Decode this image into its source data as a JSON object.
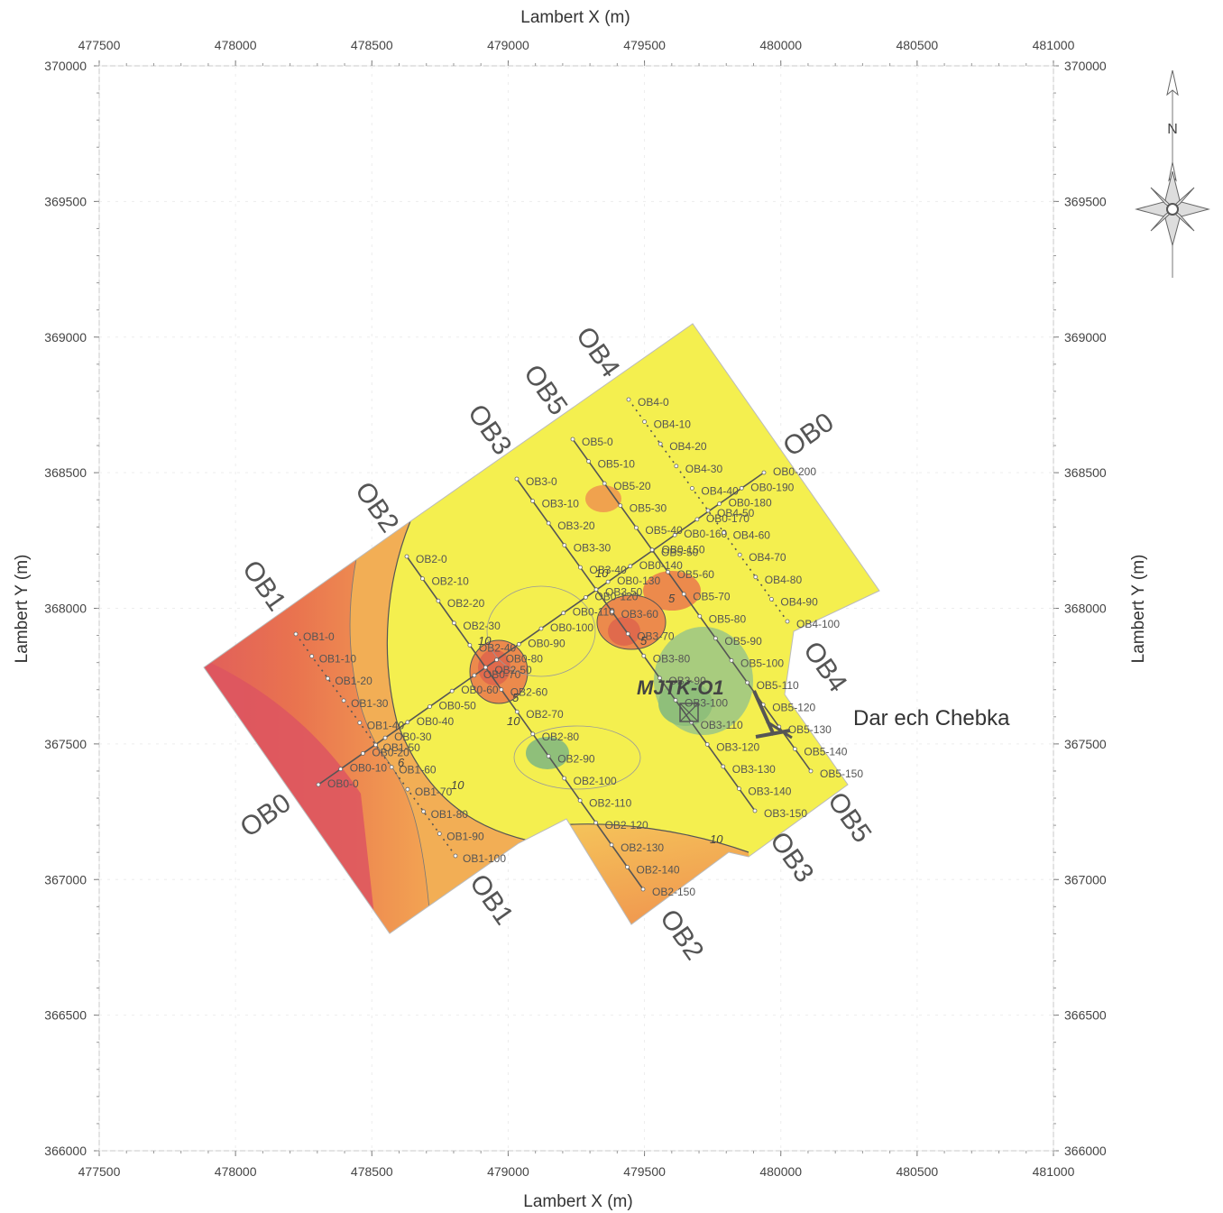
{
  "axes": {
    "x_title": "Lambert X (m)",
    "y_title": "Lambert Y (m)",
    "x_ticks": [
      "477500",
      "478000",
      "478500",
      "479000",
      "479500",
      "480000",
      "480500",
      "481000"
    ],
    "y_ticks": [
      "370000",
      "369500",
      "369000",
      "368500",
      "368000",
      "367500",
      "367000",
      "366500",
      "366000"
    ],
    "x_range": [
      477500,
      481000
    ],
    "y_range": [
      366000,
      370000
    ]
  },
  "north_arrow": {
    "label": "N",
    "icon": "compass-rose-icon"
  },
  "place_label": "Dar ech Chebka",
  "well": {
    "label": "MJTK-O1"
  },
  "colors": {
    "low": "#e05a5a",
    "mid": "#f0a24e",
    "high": "#f5f04a",
    "green": "#8fbf7a",
    "background": "#ffffff"
  },
  "contour_labels": [
    "10",
    "5",
    "10",
    "10",
    "5",
    "6",
    "5",
    "10",
    "10"
  ],
  "profiles": [
    {
      "name": "OB0",
      "stations": [
        "OB0-0",
        "OB0-10",
        "OB0-20",
        "OB0-30",
        "OB0-40",
        "OB0-50",
        "OB0-60",
        "OB0-70",
        "OB0-80",
        "OB0-90",
        "OB0-100",
        "OB0-110",
        "OB0-120",
        "OB0-130",
        "OB0-140",
        "OB0-150",
        "OB0-160",
        "OB0-170",
        "OB0-180",
        "OB0-190",
        "OB0-200"
      ]
    },
    {
      "name": "OB1",
      "stations": [
        "OB1-0",
        "OB1-10",
        "OB1-20",
        "OB1-30",
        "OB1-40",
        "OB1-50",
        "OB1-60",
        "OB1-70",
        "OB1-80",
        "OB1-90",
        "OB1-100"
      ]
    },
    {
      "name": "OB2",
      "stations": [
        "OB2-0",
        "OB2-10",
        "OB2-20",
        "OB2-30",
        "OB2-40",
        "OB2-50",
        "OB2-60",
        "OB2-70",
        "OB2-80",
        "OB2-90",
        "OB2-100",
        "OB2-110",
        "OB2-120",
        "OB2-130",
        "OB2-140",
        "OB2-150"
      ]
    },
    {
      "name": "OB3",
      "stations": [
        "OB3-0",
        "OB3-10",
        "OB3-20",
        "OB3-30",
        "OB3-40",
        "OB3-50",
        "OB3-60",
        "OB3-70",
        "OB3-80",
        "OB3-90",
        "OB3-100",
        "OB3-110",
        "OB3-120",
        "OB3-130",
        "OB3-140",
        "OB3-150"
      ]
    },
    {
      "name": "OB4",
      "stations": [
        "OB4-0",
        "OB4-10",
        "OB4-20",
        "OB4-30",
        "OB4-40",
        "OB4-50",
        "OB4-60",
        "OB4-70",
        "OB4-80",
        "OB4-90",
        "OB4-100"
      ]
    },
    {
      "name": "OB5",
      "stations": [
        "OB5-0",
        "OB5-10",
        "OB5-20",
        "OB5-30",
        "OB5-40",
        "OB5-50",
        "OB5-60",
        "OB5-70",
        "OB5-80",
        "OB5-90",
        "OB5-100",
        "OB5-110",
        "OB5-120",
        "OB5-130",
        "OB5-140",
        "OB5-150"
      ]
    }
  ]
}
